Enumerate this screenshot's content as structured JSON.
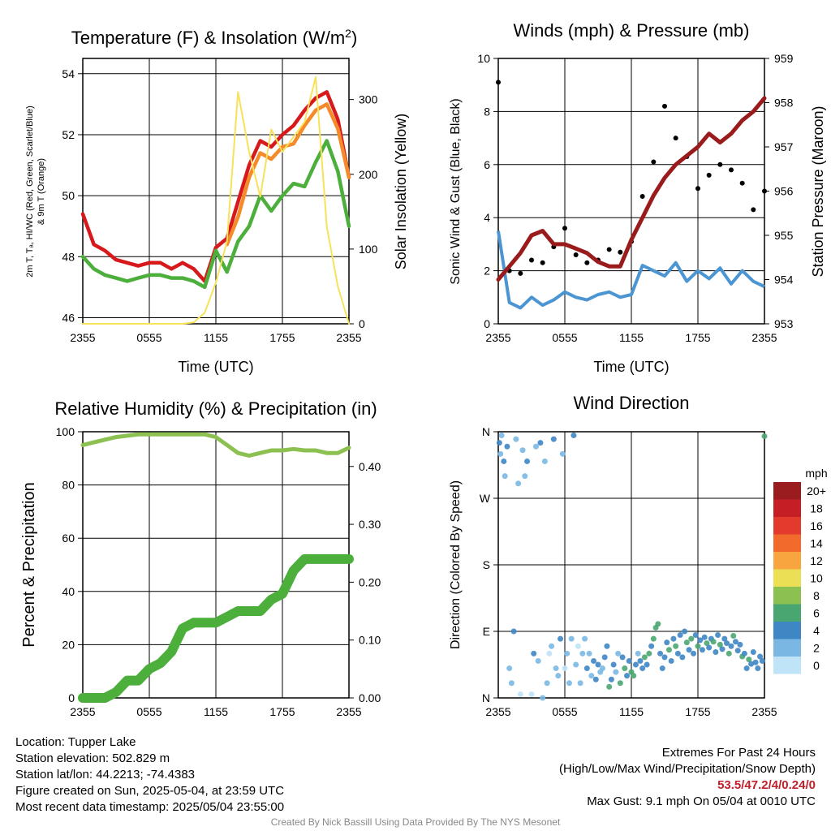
{
  "chart_data": [
    {
      "type": "line",
      "title": "Temperature (F) & Insolation (W/m²)",
      "xlabel": "Time (UTC)",
      "ylabel": "2m T, Td, HI/WC (Red, Green, Scarlet/Blue) & 9m T (Orange)",
      "ylabel_lines": [
        "2m T, Tₐ, HI/WC (Red, Green, Scarlet/Blue)",
        "& 9m T (Orange)"
      ],
      "y2label": "Solar Insolation (Yellow)",
      "x_ticks": [
        "2355",
        "0555",
        "1155",
        "1755",
        "2355"
      ],
      "y_ticks": [
        "46",
        "48",
        "50",
        "52",
        "54"
      ],
      "y2_ticks": [
        "0",
        "100",
        "200",
        "300"
      ],
      "ylim": [
        45.8,
        54.5
      ],
      "y2lim": [
        0,
        355
      ],
      "x": [
        0,
        1,
        2,
        3,
        4,
        5,
        6,
        7,
        8,
        9,
        10,
        11,
        12,
        13,
        14,
        15,
        16,
        17,
        18,
        19,
        20,
        21,
        22,
        23,
        24
      ],
      "series": [
        {
          "name": "2m T",
          "color": "#d7191c",
          "axis": "left",
          "values": [
            49.4,
            48.4,
            48.2,
            47.9,
            47.8,
            47.7,
            47.8,
            47.8,
            47.6,
            47.8,
            47.6,
            47.2,
            48.3,
            48.6,
            49.8,
            51.0,
            51.8,
            51.6,
            52.0,
            52.3,
            52.8,
            53.2,
            53.4,
            52.5,
            50.6
          ]
        },
        {
          "name": "9m T",
          "color": "#f48a28",
          "axis": "left",
          "values": [
            null,
            null,
            null,
            null,
            null,
            null,
            null,
            null,
            null,
            null,
            null,
            null,
            null,
            48.4,
            49.3,
            50.6,
            51.4,
            51.2,
            51.6,
            51.7,
            52.3,
            52.8,
            53.0,
            52.2,
            50.6
          ]
        },
        {
          "name": "Td",
          "color": "#4caf3c",
          "axis": "left",
          "values": [
            48.0,
            47.6,
            47.4,
            47.3,
            47.2,
            47.3,
            47.4,
            47.4,
            47.3,
            47.3,
            47.2,
            47.0,
            48.2,
            47.5,
            48.5,
            49.0,
            50.0,
            49.5,
            50.0,
            50.4,
            50.3,
            51.1,
            51.8,
            50.8,
            49.0
          ]
        },
        {
          "name": "Solar Insolation",
          "color": "#f7e25a",
          "axis": "right",
          "values": [
            0,
            0,
            0,
            0,
            0,
            0,
            0,
            0,
            0,
            0,
            2,
            15,
            55,
            110,
            310,
            230,
            170,
            260,
            230,
            250,
            270,
            330,
            130,
            50,
            0
          ]
        }
      ]
    },
    {
      "type": "line",
      "title": "Winds (mph) & Pressure (mb)",
      "xlabel": "Time (UTC)",
      "ylabel": "Sonic Wind & Gust (Blue, Black)",
      "y2label": "Station Pressure (Maroon)",
      "x_ticks": [
        "2355",
        "0555",
        "1155",
        "1755",
        "2355"
      ],
      "y_ticks": [
        "0",
        "2",
        "4",
        "6",
        "8",
        "10"
      ],
      "y2_ticks": [
        "953",
        "954",
        "955",
        "956",
        "957",
        "958",
        "959"
      ],
      "ylim": [
        0,
        10
      ],
      "y2lim": [
        953,
        959
      ],
      "x": [
        0,
        1,
        2,
        3,
        4,
        5,
        6,
        7,
        8,
        9,
        10,
        11,
        12,
        13,
        14,
        15,
        16,
        17,
        18,
        19,
        20,
        21,
        22,
        23,
        24
      ],
      "series": [
        {
          "name": "Sonic Wind",
          "color": "#4b96d2",
          "axis": "left",
          "values": [
            3.5,
            0.8,
            0.6,
            1.0,
            0.7,
            0.9,
            1.2,
            1.0,
            0.9,
            1.1,
            1.2,
            1.0,
            1.1,
            2.2,
            2.0,
            1.8,
            2.3,
            1.6,
            2.0,
            1.7,
            2.1,
            1.5,
            2.0,
            1.6,
            1.4
          ]
        },
        {
          "name": "Gust",
          "color": "#000000",
          "axis": "left",
          "values": [
            9.1,
            2.0,
            1.9,
            2.4,
            2.3,
            2.9,
            3.6,
            2.6,
            2.3,
            2.4,
            2.8,
            2.7,
            3.1,
            4.8,
            6.1,
            8.2,
            7.0,
            6.3,
            5.1,
            5.6,
            6.0,
            5.8,
            5.3,
            4.3,
            5.0
          ]
        },
        {
          "name": "Station Pressure",
          "color": "#9a1b1b",
          "axis": "right",
          "values": [
            954.0,
            954.3,
            954.6,
            955.0,
            955.1,
            954.8,
            954.8,
            954.7,
            954.6,
            954.4,
            954.3,
            954.3,
            954.9,
            955.4,
            955.9,
            956.3,
            956.6,
            956.8,
            957.0,
            957.3,
            957.1,
            957.3,
            957.6,
            957.8,
            958.1
          ]
        }
      ]
    },
    {
      "type": "line",
      "title": "Relative Humidity (%) & Precipitation (in)",
      "xlabel": "",
      "ylabel": "Percent & Precipitation",
      "x_ticks": [
        "2355",
        "0555",
        "1155",
        "1755",
        "2355"
      ],
      "y_ticks": [
        "0",
        "20",
        "40",
        "60",
        "80",
        "100"
      ],
      "y2_ticks": [
        "0.00",
        "0.10",
        "0.20",
        "0.30",
        "0.40"
      ],
      "ylim": [
        0,
        100
      ],
      "y2lim": [
        0,
        0.46
      ],
      "x": [
        0,
        1,
        2,
        3,
        4,
        5,
        6,
        7,
        8,
        9,
        10,
        11,
        12,
        13,
        14,
        15,
        16,
        17,
        18,
        19,
        20,
        21,
        22,
        23,
        24
      ],
      "series": [
        {
          "name": "Relative Humidity",
          "color": "#8cc152",
          "axis": "left",
          "values": [
            95,
            96,
            97,
            98,
            98.5,
            99,
            99,
            99,
            99,
            99,
            99,
            99,
            98,
            95,
            92,
            91,
            92,
            93,
            93,
            93.5,
            93,
            93,
            92,
            92,
            94
          ]
        },
        {
          "name": "Precipitation",
          "color": "#4caf3c",
          "axis": "right",
          "values": [
            0,
            0,
            0,
            0.01,
            0.03,
            0.03,
            0.05,
            0.06,
            0.08,
            0.12,
            0.13,
            0.13,
            0.13,
            0.14,
            0.15,
            0.15,
            0.15,
            0.17,
            0.18,
            0.22,
            0.24,
            0.24,
            0.24,
            0.24,
            0.24
          ]
        }
      ]
    },
    {
      "type": "scatter",
      "title": "Wind Direction",
      "ylabel": "Direction (Colored By Speed)",
      "x_ticks": [
        "2355",
        "0555",
        "1155",
        "1755",
        "2355"
      ],
      "y_ticks": [
        "N",
        "E",
        "S",
        "W",
        "N"
      ],
      "ylim": [
        0,
        360
      ],
      "legend_title": "mph",
      "legend_labels": [
        "20+",
        "18",
        "16",
        "14",
        "12",
        "10",
        "8",
        "6",
        "4",
        "2",
        "0"
      ],
      "legend_colors": [
        "#9b1c1e",
        "#c51f25",
        "#e23a2d",
        "#f26a2c",
        "#f8a43f",
        "#ebe055",
        "#8cc152",
        "#4aa671",
        "#3f86c4",
        "#7ab8e3",
        "#bfe3f7"
      ],
      "points": [
        [
          0.1,
          345,
          2
        ],
        [
          0.2,
          330,
          1
        ],
        [
          0.3,
          355,
          1
        ],
        [
          0.5,
          320,
          2
        ],
        [
          0.6,
          300,
          1
        ],
        [
          0.8,
          340,
          2
        ],
        [
          1.0,
          40,
          1
        ],
        [
          1.2,
          20,
          1
        ],
        [
          1.4,
          90,
          2
        ],
        [
          1.6,
          350,
          1
        ],
        [
          1.8,
          290,
          1
        ],
        [
          2.0,
          5,
          0
        ],
        [
          2.2,
          335,
          1
        ],
        [
          2.4,
          300,
          1
        ],
        [
          2.6,
          320,
          2
        ],
        [
          3.0,
          5,
          0
        ],
        [
          3.2,
          60,
          2
        ],
        [
          3.4,
          340,
          1
        ],
        [
          3.6,
          50,
          1
        ],
        [
          3.8,
          345,
          2
        ],
        [
          4.0,
          0,
          1
        ],
        [
          4.2,
          320,
          1
        ],
        [
          4.4,
          20,
          1
        ],
        [
          4.6,
          60,
          0
        ],
        [
          4.8,
          70,
          1
        ],
        [
          5.0,
          350,
          2
        ],
        [
          5.2,
          40,
          1
        ],
        [
          5.4,
          30,
          1
        ],
        [
          5.6,
          80,
          2
        ],
        [
          5.8,
          330,
          1
        ],
        [
          6.0,
          40,
          0
        ],
        [
          6.2,
          60,
          1
        ],
        [
          6.4,
          20,
          1
        ],
        [
          6.6,
          80,
          1
        ],
        [
          6.8,
          355,
          2
        ],
        [
          7.0,
          45,
          1
        ],
        [
          7.2,
          70,
          0
        ],
        [
          7.4,
          20,
          1
        ],
        [
          7.6,
          60,
          1
        ],
        [
          7.8,
          80,
          1
        ],
        [
          8.0,
          40,
          2
        ],
        [
          8.2,
          60,
          1
        ],
        [
          8.4,
          30,
          1
        ],
        [
          8.6,
          50,
          2
        ],
        [
          8.8,
          25,
          2
        ],
        [
          9.0,
          45,
          2
        ],
        [
          9.2,
          35,
          1
        ],
        [
          9.4,
          40,
          1
        ],
        [
          9.6,
          55,
          2
        ],
        [
          9.8,
          70,
          2
        ],
        [
          10.0,
          15,
          3
        ],
        [
          10.2,
          25,
          2
        ],
        [
          10.4,
          45,
          2
        ],
        [
          10.6,
          35,
          1
        ],
        [
          10.8,
          60,
          1
        ],
        [
          11.0,
          20,
          3
        ],
        [
          11.2,
          55,
          2
        ],
        [
          11.4,
          40,
          3
        ],
        [
          11.6,
          30,
          2
        ],
        [
          11.8,
          50,
          2
        ],
        [
          12.0,
          35,
          3
        ],
        [
          12.2,
          30,
          3
        ],
        [
          12.4,
          45,
          2
        ],
        [
          12.6,
          60,
          1
        ],
        [
          12.8,
          50,
          2
        ],
        [
          13.0,
          40,
          2
        ],
        [
          13.2,
          55,
          3
        ],
        [
          13.4,
          45,
          2
        ],
        [
          13.6,
          60,
          3
        ],
        [
          13.8,
          70,
          2
        ],
        [
          14.0,
          80,
          3
        ],
        [
          14.2,
          95,
          3
        ],
        [
          14.4,
          100,
          3
        ],
        [
          14.6,
          60,
          2
        ],
        [
          14.8,
          40,
          2
        ],
        [
          15.0,
          55,
          2
        ],
        [
          15.2,
          75,
          2
        ],
        [
          15.4,
          65,
          3
        ],
        [
          15.6,
          50,
          2
        ],
        [
          15.8,
          80,
          2
        ],
        [
          16.0,
          70,
          3
        ],
        [
          16.2,
          60,
          2
        ],
        [
          16.4,
          85,
          2
        ],
        [
          16.6,
          55,
          2
        ],
        [
          16.8,
          90,
          2
        ],
        [
          17.0,
          75,
          3
        ],
        [
          17.2,
          65,
          2
        ],
        [
          17.4,
          80,
          3
        ],
        [
          17.6,
          60,
          2
        ],
        [
          17.8,
          85,
          2
        ],
        [
          18.0,
          70,
          3
        ],
        [
          18.2,
          78,
          2
        ],
        [
          18.4,
          65,
          2
        ],
        [
          18.6,
          82,
          2
        ],
        [
          18.8,
          74,
          3
        ],
        [
          19.0,
          68,
          2
        ],
        [
          19.2,
          80,
          2
        ],
        [
          19.4,
          76,
          3
        ],
        [
          19.6,
          62,
          2
        ],
        [
          19.8,
          85,
          2
        ],
        [
          20.0,
          72,
          3
        ],
        [
          20.2,
          66,
          2
        ],
        [
          20.4,
          80,
          2
        ],
        [
          20.6,
          74,
          2
        ],
        [
          20.8,
          60,
          3
        ],
        [
          21.0,
          70,
          2
        ],
        [
          21.2,
          84,
          3
        ],
        [
          21.4,
          76,
          2
        ],
        [
          21.6,
          64,
          2
        ],
        [
          21.8,
          72,
          2
        ],
        [
          22.0,
          56,
          3
        ],
        [
          22.2,
          60,
          2
        ],
        [
          22.4,
          40,
          2
        ],
        [
          22.6,
          52,
          3
        ],
        [
          22.8,
          46,
          2
        ],
        [
          23.0,
          62,
          2
        ],
        [
          23.2,
          48,
          2
        ],
        [
          23.4,
          40,
          2
        ],
        [
          23.6,
          56,
          2
        ],
        [
          23.8,
          50,
          2
        ],
        [
          24.0,
          354,
          3
        ]
      ]
    }
  ],
  "info_left": {
    "location": "Location: Tupper Lake",
    "elevation": "Station elevation: 502.829 m",
    "latlon": "Station lat/lon: 44.2213; -74.4383",
    "created": "Figure created on Sun, 2025-05-04, at 23:59 UTC",
    "recent": "Most recent data timestamp: 2025/05/04 23:55:00"
  },
  "info_right": {
    "line1": "Extremes For Past 24 Hours",
    "line2": "(High/Low/Max Wind/Precipitation/Snow Depth)",
    "extremes": "53.5/47.2/4/0.24/0",
    "gust": "Max Gust: 9.1 mph On 05/04 at 0010 UTC"
  },
  "credit": "Created By Nick Bassill Using Data Provided By The NYS Mesonet"
}
